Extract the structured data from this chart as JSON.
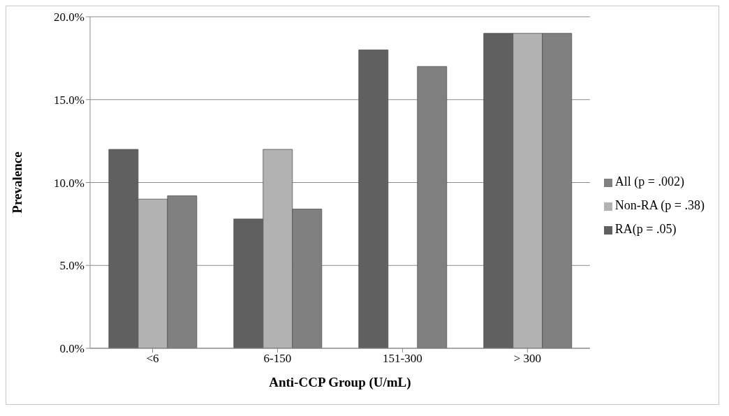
{
  "chart_data": {
    "type": "bar",
    "xlabel": "Anti-CCP Group (U/mL)",
    "ylabel": "Prevalence",
    "categories": [
      "<6",
      "6-150",
      "151-300",
      "> 300"
    ],
    "series": [
      {
        "name": "RA(p = .05)",
        "color": "#606060",
        "values": [
          12.0,
          7.8,
          18.0,
          19.0
        ]
      },
      {
        "name": "Non-RA  (p = .38)",
        "color": "#b2b2b2",
        "values": [
          9.0,
          12.0,
          null,
          19.0
        ]
      },
      {
        "name": "All (p = .002)",
        "color": "#808080",
        "values": [
          9.2,
          8.4,
          17.0,
          19.0
        ]
      }
    ],
    "ylim": [
      0,
      20
    ],
    "yticks": [
      {
        "value": 0,
        "label": "0.0%"
      },
      {
        "value": 5,
        "label": "5.0%"
      },
      {
        "value": 10,
        "label": "10.0%"
      },
      {
        "value": 15,
        "label": "15.0%"
      },
      {
        "value": 20,
        "label": "20.0%"
      }
    ],
    "grid": "y",
    "legend": "right"
  }
}
